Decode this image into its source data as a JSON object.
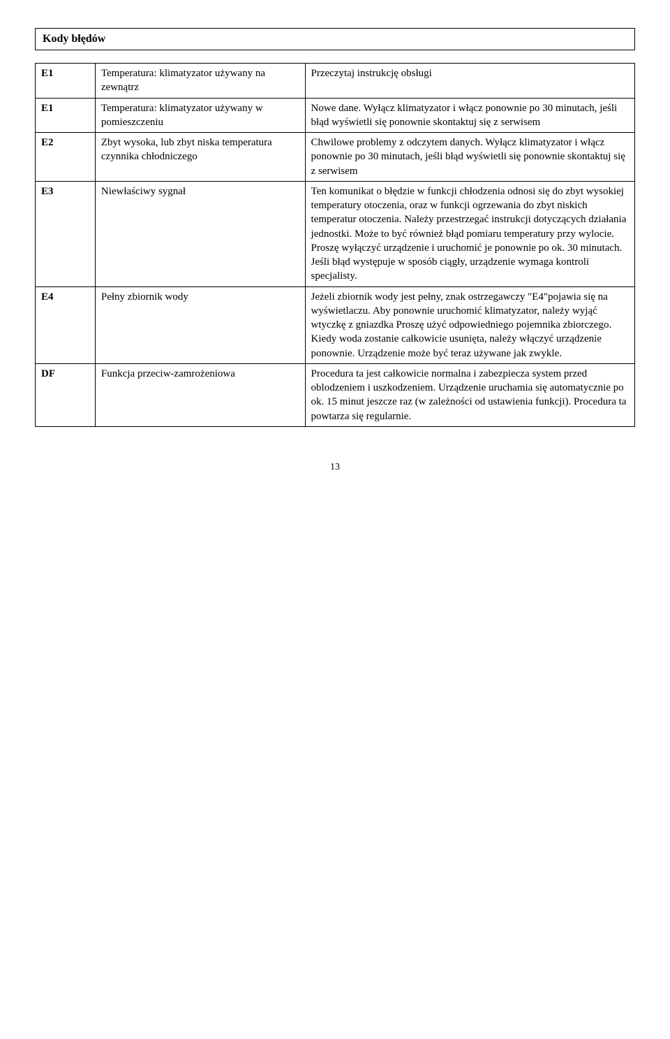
{
  "heading": "Kody błędów",
  "rows": [
    {
      "code": "E1",
      "cause": "Temperatura: klimatyzator używany na zewnątrz",
      "solution": "Przeczytaj instrukcję obsługi"
    },
    {
      "code": "E1",
      "cause": "Temperatura: klimatyzator używany w pomieszczeniu",
      "solution": "Nowe dane. Wyłącz klimatyzator i włącz ponownie po 30 minutach, jeśli błąd wyświetli się ponownie skontaktuj się z serwisem"
    },
    {
      "code": "E2",
      "cause": "Zbyt wysoka, lub zbyt niska temperatura czynnika chłodniczego",
      "solution": "Chwilowe problemy z odczytem danych. Wyłącz klimatyzator i włącz ponownie po 30 minutach, jeśli błąd wyświetli się ponownie skontaktuj się z serwisem"
    },
    {
      "code": "E3",
      "cause": "Niewłaściwy sygnał",
      "solution": "Ten komunikat o błędzie w funkcji chłodzenia odnosi się do zbyt wysokiej temperatury otoczenia, oraz w funkcji ogrzewania do zbyt niskich temperatur otoczenia. Należy przestrzegać instrukcji dotyczących działania jednostki. Może to być również błąd pomiaru temperatury przy wylocie. Proszę wyłączyć urządzenie i uruchomić je ponownie po ok. 30 minutach. Jeśli błąd występuje w sposób ciągły, urządzenie wymaga kontroli specjalisty."
    },
    {
      "code": "E4",
      "cause": "Pełny zbiornik wody",
      "solution": "Jeżeli zbiornik wody jest pełny, znak ostrzegawczy \"E4\"pojawia się na wyświetlaczu. Aby ponownie uruchomić klimatyzator, należy wyjąć wtyczkę z gniazdka Proszę użyć odpowiedniego pojemnika zbiorczego. Kiedy woda zostanie całkowicie usunięta, należy włączyć urządzenie ponownie. Urządzenie może być teraz używane jak zwykle."
    },
    {
      "code": "DF",
      "cause": "Funkcja przeciw-zamrożeniowa",
      "solution": "Procedura ta jest całkowicie normalna i zabezpiecza system przed oblodzeniem i uszkodzeniem. Urządzenie uruchamia się automatycznie po ok. 15 minut jeszcze raz (w zależności od ustawienia funkcji). Procedura ta powtarza się regularnie."
    }
  ],
  "page_number": "13"
}
